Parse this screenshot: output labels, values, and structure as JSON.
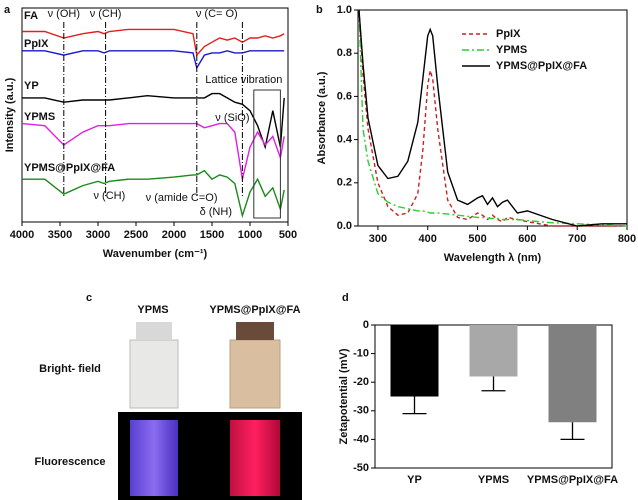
{
  "panel_labels": [
    "a",
    "b",
    "c",
    "d"
  ],
  "chart_data": [
    {
      "type": "line",
      "ylabel": "Intensity (a.u.)",
      "xlabel": "Wavenumber (cm⁻¹)",
      "xlim": [
        4000,
        500
      ],
      "xticks": [
        4000,
        3500,
        3000,
        2500,
        2000,
        1500,
        1000,
        500
      ],
      "ylim": [
        0,
        1
      ],
      "annotations": [
        "ν (OH)",
        "ν (CH)",
        "ν (C= O)",
        "Lattice vibration",
        "ν (SiO)",
        "ν (CH)",
        "ν (amide C=O)",
        "δ (NH)"
      ],
      "x": [
        4000,
        3700,
        3450,
        3200,
        3000,
        2920,
        2850,
        2600,
        2350,
        2000,
        1750,
        1700,
        1600,
        1500,
        1400,
        1300,
        1200,
        1100,
        1000,
        900,
        800,
        700,
        600,
        550
      ],
      "series": [
        {
          "name": "FA",
          "color": "#e02020",
          "values": [
            0.89,
            0.89,
            0.86,
            0.88,
            0.89,
            0.88,
            0.89,
            0.9,
            0.9,
            0.9,
            0.88,
            0.78,
            0.82,
            0.84,
            0.86,
            0.85,
            0.86,
            0.84,
            0.86,
            0.86,
            0.87,
            0.86,
            0.87,
            0.88
          ]
        },
        {
          "name": "PpIX",
          "color": "#1a1acc",
          "values": [
            0.8,
            0.8,
            0.78,
            0.8,
            0.8,
            0.79,
            0.8,
            0.8,
            0.8,
            0.8,
            0.79,
            0.72,
            0.78,
            0.79,
            0.79,
            0.8,
            0.79,
            0.79,
            0.8,
            0.8,
            0.8,
            0.8,
            0.8,
            0.8
          ]
        },
        {
          "name": "YP",
          "color": "#000000",
          "values": [
            0.58,
            0.58,
            0.56,
            0.57,
            0.57,
            0.57,
            0.57,
            0.58,
            0.59,
            0.58,
            0.58,
            0.58,
            0.58,
            0.6,
            0.6,
            0.58,
            0.56,
            0.55,
            0.52,
            0.45,
            0.35,
            0.52,
            0.35,
            0.58
          ]
        },
        {
          "name": "YPMS",
          "color": "#e020e0",
          "values": [
            0.46,
            0.45,
            0.36,
            0.42,
            0.45,
            0.45,
            0.45,
            0.46,
            0.46,
            0.46,
            0.46,
            0.46,
            0.44,
            0.45,
            0.46,
            0.46,
            0.42,
            0.2,
            0.35,
            0.42,
            0.36,
            0.4,
            0.3,
            0.4
          ]
        },
        {
          "name": "YPMS@PpIX@FA",
          "color": "#1a8a1a",
          "values": [
            0.2,
            0.2,
            0.13,
            0.17,
            0.19,
            0.18,
            0.19,
            0.2,
            0.2,
            0.21,
            0.22,
            0.22,
            0.24,
            0.2,
            0.22,
            0.21,
            0.18,
            0.03,
            0.14,
            0.2,
            0.12,
            0.16,
            0.06,
            0.15
          ]
        }
      ]
    },
    {
      "type": "line",
      "ylabel": "Absorbance (a.u.)",
      "xlabel": "Wavelength λ (nm)",
      "xlim": [
        260,
        800
      ],
      "xticks": [
        300,
        400,
        500,
        600,
        700,
        800
      ],
      "ylim": [
        0,
        1
      ],
      "yticks": [
        {
          "value": 0,
          "label": "0.0"
        },
        0.2,
        0.4,
        0.6,
        0.8,
        {
          "value": 1,
          "label": "1.0"
        }
      ],
      "legend": "upper right",
      "x": [
        262,
        270,
        280,
        300,
        320,
        340,
        360,
        380,
        390,
        400,
        405,
        410,
        420,
        440,
        460,
        480,
        500,
        510,
        520,
        530,
        540,
        550,
        560,
        580,
        600,
        650,
        700,
        750,
        800
      ],
      "series": [
        {
          "name": "PpIX",
          "color": "#cc2020",
          "dash": "dashed",
          "values": [
            1.0,
            0.7,
            0.45,
            0.2,
            0.09,
            0.05,
            0.06,
            0.15,
            0.35,
            0.65,
            0.72,
            0.68,
            0.45,
            0.12,
            0.04,
            0.03,
            0.06,
            0.05,
            0.03,
            0.05,
            0.03,
            0.02,
            0.04,
            0.03,
            0.02,
            0,
            0,
            0,
            0
          ]
        },
        {
          "name": "YPMS",
          "color": "#30cc30",
          "dash": "dashdot",
          "values": [
            1.0,
            0.45,
            0.3,
            0.15,
            0.11,
            0.09,
            0.08,
            0.07,
            0.07,
            0.065,
            0.06,
            0.06,
            0.06,
            0.055,
            0.05,
            0.045,
            0.04,
            0.04,
            0.035,
            0.035,
            0.035,
            0.03,
            0.03,
            0.03,
            0.025,
            0.015,
            0.01,
            0.005,
            0
          ]
        },
        {
          "name": "YPMS@PpIX@FA",
          "color": "#000000",
          "dash": "solid",
          "values": [
            1.0,
            0.75,
            0.5,
            0.28,
            0.22,
            0.23,
            0.3,
            0.48,
            0.68,
            0.88,
            0.91,
            0.88,
            0.65,
            0.25,
            0.12,
            0.1,
            0.13,
            0.14,
            0.1,
            0.13,
            0.09,
            0.11,
            0.12,
            0.06,
            0.07,
            0.03,
            0,
            0.01,
            0.01
          ]
        }
      ]
    },
    {
      "type": "bar",
      "ylabel": "Zetapotential (mV)",
      "categories": [
        "YP",
        "YPMS",
        "YPMS@PpIX@FA"
      ],
      "values": [
        -25,
        -18,
        -34
      ],
      "errors": [
        6,
        5,
        6
      ],
      "colors": [
        "#000000",
        "#a8a8a8",
        "#808080"
      ],
      "ylim": [
        -50,
        0
      ],
      "yticks": [
        0,
        -10,
        -20,
        -30,
        -40,
        -50
      ]
    }
  ],
  "photo": {
    "columns": [
      "YPMS",
      "YPMS@PpIX@FA"
    ],
    "rows": [
      "Bright- field",
      "Fluorescence"
    ]
  }
}
